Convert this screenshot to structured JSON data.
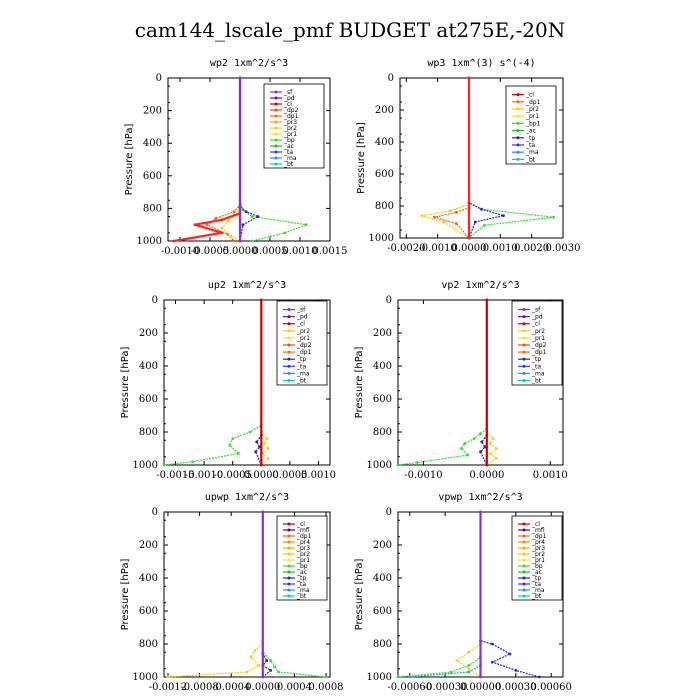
{
  "figure": {
    "title": "cam144_lscale_pmf  BUDGET at275E,-20N"
  },
  "chart_data": [
    {
      "type": "line",
      "title": "wp2   1xm^2/s^3",
      "ylabel": "Pressure [hPa]",
      "ylim": [
        1000,
        0
      ],
      "yticks": [
        "0",
        "200",
        "400",
        "600",
        "800",
        "1000"
      ],
      "xlim": [
        -0.0012,
        0.0015
      ],
      "xticks": [
        "-0.0010",
        "-0.0005",
        "0.0000",
        "0.0005",
        "0.0010",
        "0.0015"
      ],
      "legend": [
        "_sf",
        "_pd",
        "_cl",
        "_dp2",
        "_dp1",
        "_pr3",
        "_pr2",
        "_pr1",
        "_bp",
        "_ac",
        "_ta",
        "_ma",
        "_bt"
      ],
      "series": [
        {
          "name": "_bp",
          "color": "#33dd33",
          "x": [
            0,
            0,
            5e-05,
            0.0002,
            0.0011,
            0.00075,
            0.0002
          ],
          "y": [
            0,
            750,
            810,
            850,
            900,
            950,
            1000
          ]
        },
        {
          "name": "_dp1",
          "color": "#ff6600",
          "x": [
            0,
            0,
            -0.0001,
            -0.0004,
            -0.00055,
            -0.0002,
            -0.0001
          ],
          "y": [
            0,
            780,
            820,
            860,
            900,
            960,
            1000
          ]
        },
        {
          "name": "_pr2",
          "color": "#ffcc00",
          "x": [
            0,
            0,
            -0.0001,
            -0.0002,
            -0.0003,
            -0.00015,
            0
          ],
          "y": [
            0,
            800,
            840,
            880,
            920,
            970,
            1000
          ]
        },
        {
          "name": "_ta",
          "color": "#2222cc",
          "x": [
            0,
            0,
            0.0001,
            0.0003,
            5e-05,
            0
          ],
          "y": [
            0,
            790,
            820,
            850,
            900,
            1000
          ]
        },
        {
          "name": "_cl",
          "color": "#ff2222",
          "x": [
            0,
            0,
            -0.0003,
            -0.00075,
            -0.0003,
            -0.0011
          ],
          "y": [
            0,
            830,
            870,
            900,
            950,
            1000
          ]
        },
        {
          "name": "_sf",
          "color": "#8a2be2",
          "x": [
            0,
            0
          ],
          "y": [
            0,
            1000
          ]
        }
      ]
    },
    {
      "type": "line",
      "title": "wp3   1xm^(3) s^(-4)",
      "ylabel": "Pressure [hPa]",
      "ylim": [
        1000,
        0
      ],
      "yticks": [
        "0",
        "200",
        "400",
        "600",
        "800",
        "1000"
      ],
      "xlim": [
        -0.0022,
        0.003
      ],
      "xticks": [
        "-0.0020",
        "-0.0010",
        "0.0000",
        "0.0010",
        "0.0020",
        "0.0030"
      ],
      "legend": [
        "_cl",
        "_dp1",
        "_pr2",
        "_pr1",
        "_bp1",
        "_ac",
        "_tp",
        "_ta",
        "_ma",
        "_bt"
      ],
      "series": [
        {
          "name": "_bp1",
          "color": "#33dd33",
          "x": [
            0,
            0,
            0.0004,
            0.0027,
            0.0005,
            0
          ],
          "y": [
            0,
            780,
            820,
            870,
            920,
            1000
          ]
        },
        {
          "name": "_pr1",
          "color": "#ffcc00",
          "x": [
            0,
            0,
            -0.0006,
            -0.0015,
            -0.0008,
            0
          ],
          "y": [
            0,
            790,
            830,
            860,
            900,
            1000
          ]
        },
        {
          "name": "_dp1",
          "color": "#ff6600",
          "x": [
            0,
            0,
            -0.0004,
            -0.0011,
            -0.0004,
            0
          ],
          "y": [
            0,
            810,
            840,
            870,
            910,
            1000
          ]
        },
        {
          "name": "_ta",
          "color": "#2222cc",
          "x": [
            0,
            0,
            0.0004,
            0.0011,
            0.0002,
            0
          ],
          "y": [
            0,
            780,
            820,
            860,
            900,
            1000
          ]
        },
        {
          "name": "_cl",
          "color": "#ff2222",
          "x": [
            0,
            0
          ],
          "y": [
            0,
            1000
          ]
        }
      ]
    },
    {
      "type": "line",
      "title": "up2   1xm^2/s^3",
      "ylabel": "Pressure [hPa]",
      "ylim": [
        1000,
        0
      ],
      "yticks": [
        "0",
        "200",
        "400",
        "600",
        "800",
        "1000"
      ],
      "xlim": [
        -0.0017,
        0.0012
      ],
      "xticks": [
        "-0.0015",
        "-0.0010",
        "-0.0005",
        "0.0000",
        "0.0005",
        "0.0010"
      ],
      "legend": [
        "_sf",
        "_pd",
        "_cl",
        "_pr2",
        "_pr1",
        "_dp2",
        "_dp1",
        "_tp",
        "_ta",
        "_ma",
        "_bt"
      ],
      "series": [
        {
          "name": "_dp1",
          "color": "#33dd33",
          "x": [
            0,
            0,
            -0.0002,
            -0.0005,
            -0.00055,
            -0.0004,
            -0.0012,
            -0.0017
          ],
          "y": [
            0,
            760,
            800,
            840,
            880,
            930,
            980,
            1000
          ]
        },
        {
          "name": "_pr1",
          "color": "#ffcc00",
          "x": [
            0,
            0,
            0.0001,
            5e-05,
            0.00012,
            3e-05,
            0.00012,
            0
          ],
          "y": [
            0,
            800,
            840,
            870,
            900,
            930,
            960,
            1000
          ]
        },
        {
          "name": "_ta",
          "color": "#2222cc",
          "x": [
            0,
            0,
            -8e-05,
            -3e-05,
            -0.0001,
            0
          ],
          "y": [
            0,
            820,
            860,
            890,
            920,
            1000
          ]
        },
        {
          "name": "_cl",
          "color": "#cc0000",
          "x": [
            0,
            0
          ],
          "y": [
            0,
            1000
          ]
        }
      ]
    },
    {
      "type": "line",
      "title": "vp2   1xm^2/s^3",
      "ylabel": "Pressure [hPa]",
      "ylim": [
        1000,
        0
      ],
      "yticks": [
        "0",
        "200",
        "400",
        "600",
        "800",
        "1000"
      ],
      "xlim": [
        -0.0014,
        0.0012
      ],
      "xticks": [
        "-0.0010",
        "0.0000",
        "0.0010"
      ],
      "legend": [
        "_sf",
        "_pd",
        "_cl",
        "_pr2",
        "_pr1",
        "_dp2",
        "_dp1",
        "_tp",
        "_ta",
        "_ma",
        "_bt"
      ],
      "series": [
        {
          "name": "_dp1",
          "color": "#33dd33",
          "x": [
            0,
            0,
            -0.0001,
            -0.0002,
            -0.00035,
            -0.0004,
            -0.0003,
            -0.0011,
            -0.0014
          ],
          "y": [
            0,
            780,
            810,
            840,
            870,
            900,
            940,
            985,
            1000
          ]
        },
        {
          "name": "_pr1",
          "color": "#ffcc00",
          "x": [
            0,
            0,
            0.0001,
            5e-05,
            0.00015,
            5e-05,
            0.00015,
            0
          ],
          "y": [
            0,
            800,
            840,
            870,
            900,
            930,
            960,
            1000
          ]
        },
        {
          "name": "_ta",
          "color": "#2222cc",
          "x": [
            0,
            0,
            -8e-05,
            -3e-05,
            -0.0001,
            0
          ],
          "y": [
            0,
            820,
            860,
            890,
            920,
            1000
          ]
        },
        {
          "name": "_cl",
          "color": "#cc0000",
          "x": [
            0,
            0
          ],
          "y": [
            0,
            1000
          ]
        }
      ]
    },
    {
      "type": "line",
      "title": "upwp   1xm^2/s^3",
      "ylabel": "Pressure [hPa]",
      "ylim": [
        1000,
        0
      ],
      "yticks": [
        "0",
        "200",
        "400",
        "600",
        "800",
        "1000"
      ],
      "xlim": [
        -0.00125,
        0.00085
      ],
      "xticks": [
        "-0.0012",
        "-0.0008",
        "-0.0004",
        "0.0000",
        "0.0004",
        "0.0008"
      ],
      "legend": [
        "_cl",
        "_mfl",
        "_dp1",
        "_pr4",
        "_pr3",
        "_pr2",
        "_pr1",
        "_bp",
        "_ac",
        "_tp",
        "_ta",
        "_ma",
        "_bt"
      ],
      "series": [
        {
          "name": "_pr1",
          "color": "#ffcc00",
          "x": [
            0,
            0,
            -0.0001,
            -0.00015,
            -5e-05,
            -0.0002,
            -0.0012
          ],
          "y": [
            0,
            800,
            840,
            880,
            930,
            970,
            1000
          ]
        },
        {
          "name": "_bp",
          "color": "#33dd33",
          "x": [
            0,
            0,
            0.0001,
            0.00015,
            0.0002,
            0.0008
          ],
          "y": [
            0,
            850,
            900,
            940,
            970,
            1000
          ]
        },
        {
          "name": "_ta",
          "color": "#2222cc",
          "x": [
            0,
            0,
            5e-05,
            0,
            0.0001,
            0
          ],
          "y": [
            0,
            860,
            900,
            930,
            960,
            1000
          ]
        },
        {
          "name": "_mfl",
          "color": "#8a2be2",
          "x": [
            0,
            0
          ],
          "y": [
            0,
            1000
          ]
        }
      ]
    },
    {
      "type": "line",
      "title": "vpwp   1xm^2/s^3",
      "ylabel": "Pressure [hPa]",
      "ylim": [
        1000,
        0
      ],
      "yticks": [
        "0",
        "200",
        "400",
        "600",
        "800",
        "1000"
      ],
      "xlim": [
        -0.0007,
        0.0007
      ],
      "xticks": [
        "-0.00060",
        "-0.00030",
        "0.00000",
        "0.00030",
        "0.00060"
      ],
      "legend": [
        "_cl",
        "_mfl",
        "_dp1",
        "_pr4",
        "_pr3",
        "_pr2",
        "_pr1",
        "_bp",
        "_ac",
        "_tp",
        "_ta",
        "_ma",
        "_bt"
      ],
      "series": [
        {
          "name": "_pr1",
          "color": "#ffcc00",
          "x": [
            0,
            0,
            -0.0001,
            -0.0002,
            -0.0001,
            0
          ],
          "y": [
            0,
            800,
            850,
            900,
            950,
            1000
          ]
        },
        {
          "name": "_bp",
          "color": "#33dd33",
          "x": [
            0,
            0,
            -0.0001,
            -0.00025,
            -0.0007
          ],
          "y": [
            0,
            880,
            930,
            970,
            1000
          ]
        },
        {
          "name": "_ta",
          "color": "#2222cc",
          "x": [
            0,
            0,
            0.0001,
            0.00025,
            0.0001,
            0.0003,
            0.0005
          ],
          "y": [
            0,
            780,
            800,
            860,
            910,
            960,
            1000
          ]
        },
        {
          "name": "_ac",
          "color": "#20b2aa",
          "x": [
            0,
            0,
            -0.0001,
            -0.0006
          ],
          "y": [
            0,
            930,
            970,
            1000
          ]
        },
        {
          "name": "_mfl",
          "color": "#8a2be2",
          "x": [
            0,
            0
          ],
          "y": [
            0,
            1000
          ]
        }
      ]
    }
  ],
  "legend_colors": {
    "_sf": "#8a2be2",
    "_pd": "#6a0dad",
    "_cl": "#cc0000",
    "_mfl": "#5a0080",
    "_dp2": "#ff4400",
    "_dp1": "#ff6600",
    "_pr4": "#ff8800",
    "_pr3": "#ffaa00",
    "_pr2": "#ffcc00",
    "_pr1": "#ffdd33",
    "_bp": "#33dd33",
    "_bp1": "#33dd33",
    "_ac": "#22bb22",
    "_tp": "#2222cc",
    "_ta": "#3333ff",
    "_ma": "#1e90ff",
    "_bt": "#00cccc"
  }
}
